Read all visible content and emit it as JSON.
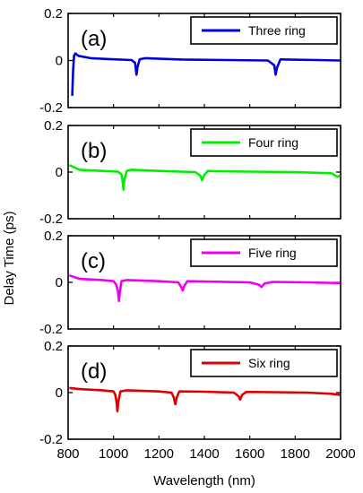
{
  "chart_data": {
    "type": "line",
    "ylabel": "Delay Time (ps)",
    "xlabel": "Wavelength (nm)",
    "xlim": [
      800,
      2000
    ],
    "x_ticks": [
      "800",
      "1000",
      "1200",
      "1400",
      "1600",
      "1800",
      "2000"
    ],
    "panels": [
      {
        "label": "(a)",
        "ylim": [
          -0.2,
          0.2
        ],
        "y_ticks": [
          "0.2",
          "0",
          "-0.2"
        ],
        "series": [
          {
            "name": "Three ring",
            "color": "#0000dd",
            "points": [
              [
                818,
                -0.15
              ],
              [
                822,
                -0.04
              ],
              [
                826,
                0.02
              ],
              [
                832,
                0.03
              ],
              [
                845,
                0.02
              ],
              [
                900,
                0.01
              ],
              [
                1000,
                0.005
              ],
              [
                1080,
                0.002
              ],
              [
                1095,
                -0.01
              ],
              [
                1101,
                -0.06
              ],
              [
                1105,
                -0.03
              ],
              [
                1115,
                0.005
              ],
              [
                1140,
                0.01
              ],
              [
                1300,
                0.004
              ],
              [
                1500,
                0.002
              ],
              [
                1680,
                0.0
              ],
              [
                1708,
                -0.02
              ],
              [
                1714,
                -0.06
              ],
              [
                1720,
                -0.03
              ],
              [
                1735,
                0.005
              ],
              [
                1760,
                0.004
              ],
              [
                1900,
                0.002
              ],
              [
                1998,
                0.0
              ]
            ]
          }
        ]
      },
      {
        "label": "(b)",
        "ylim": [
          -0.2,
          0.2
        ],
        "y_ticks": [
          "0.2",
          "0",
          "-0.2"
        ],
        "series": [
          {
            "name": "Four ring",
            "color": "#00ee00",
            "points": [
              [
                805,
                0.03
              ],
              [
                850,
                0.01
              ],
              [
                950,
                0.005
              ],
              [
                1020,
                0.002
              ],
              [
                1035,
                -0.01
              ],
              [
                1040,
                -0.04
              ],
              [
                1044,
                -0.075
              ],
              [
                1048,
                -0.03
              ],
              [
                1058,
                0.005
              ],
              [
                1080,
                0.01
              ],
              [
                1200,
                0.005
              ],
              [
                1360,
                0.0
              ],
              [
                1382,
                -0.015
              ],
              [
                1390,
                -0.035
              ],
              [
                1398,
                -0.015
              ],
              [
                1415,
                0.005
              ],
              [
                1450,
                0.004
              ],
              [
                1600,
                0.002
              ],
              [
                1800,
                0.0
              ],
              [
                1960,
                -0.005
              ],
              [
                1985,
                -0.02
              ],
              [
                1998,
                -0.015
              ]
            ]
          }
        ]
      },
      {
        "label": "(c)",
        "ylim": [
          -0.2,
          0.2
        ],
        "y_ticks": [
          "0.2",
          "0",
          "-0.2"
        ],
        "series": [
          {
            "name": "Five ring",
            "color": "#ee00ee",
            "points": [
              [
                805,
                0.03
              ],
              [
                850,
                0.015
              ],
              [
                950,
                0.01
              ],
              [
                1000,
                0.005
              ],
              [
                1012,
                -0.01
              ],
              [
                1020,
                -0.04
              ],
              [
                1024,
                -0.08
              ],
              [
                1028,
                -0.04
              ],
              [
                1035,
                0.005
              ],
              [
                1060,
                0.01
              ],
              [
                1200,
                0.005
              ],
              [
                1285,
                0.0
              ],
              [
                1298,
                -0.02
              ],
              [
                1305,
                -0.035
              ],
              [
                1312,
                -0.015
              ],
              [
                1325,
                0.005
              ],
              [
                1400,
                0.004
              ],
              [
                1600,
                0.0
              ],
              [
                1640,
                -0.01
              ],
              [
                1652,
                -0.02
              ],
              [
                1665,
                -0.005
              ],
              [
                1700,
                0.002
              ],
              [
                1850,
                0.0
              ],
              [
                1998,
                -0.003
              ]
            ]
          }
        ]
      },
      {
        "label": "(d)",
        "ylim": [
          -0.2,
          0.2
        ],
        "y_ticks": [
          "0.2",
          "0",
          "-0.2"
        ],
        "series": [
          {
            "name": "Six ring",
            "color": "#dd0000",
            "points": [
              [
                805,
                0.02
              ],
              [
                850,
                0.015
              ],
              [
                950,
                0.01
              ],
              [
                1000,
                0.005
              ],
              [
                1008,
                -0.01
              ],
              [
                1013,
                -0.04
              ],
              [
                1017,
                -0.08
              ],
              [
                1021,
                -0.04
              ],
              [
                1030,
                0.005
              ],
              [
                1060,
                0.01
              ],
              [
                1200,
                0.005
              ],
              [
                1255,
                0.0
              ],
              [
                1265,
                -0.02
              ],
              [
                1272,
                -0.05
              ],
              [
                1279,
                -0.02
              ],
              [
                1290,
                0.005
              ],
              [
                1400,
                0.004
              ],
              [
                1530,
                0.0
              ],
              [
                1550,
                -0.015
              ],
              [
                1558,
                -0.03
              ],
              [
                1566,
                -0.01
              ],
              [
                1585,
                0.003
              ],
              [
                1700,
                0.002
              ],
              [
                1850,
                0.0
              ],
              [
                1960,
                -0.005
              ],
              [
                1998,
                -0.01
              ]
            ]
          }
        ]
      }
    ]
  }
}
